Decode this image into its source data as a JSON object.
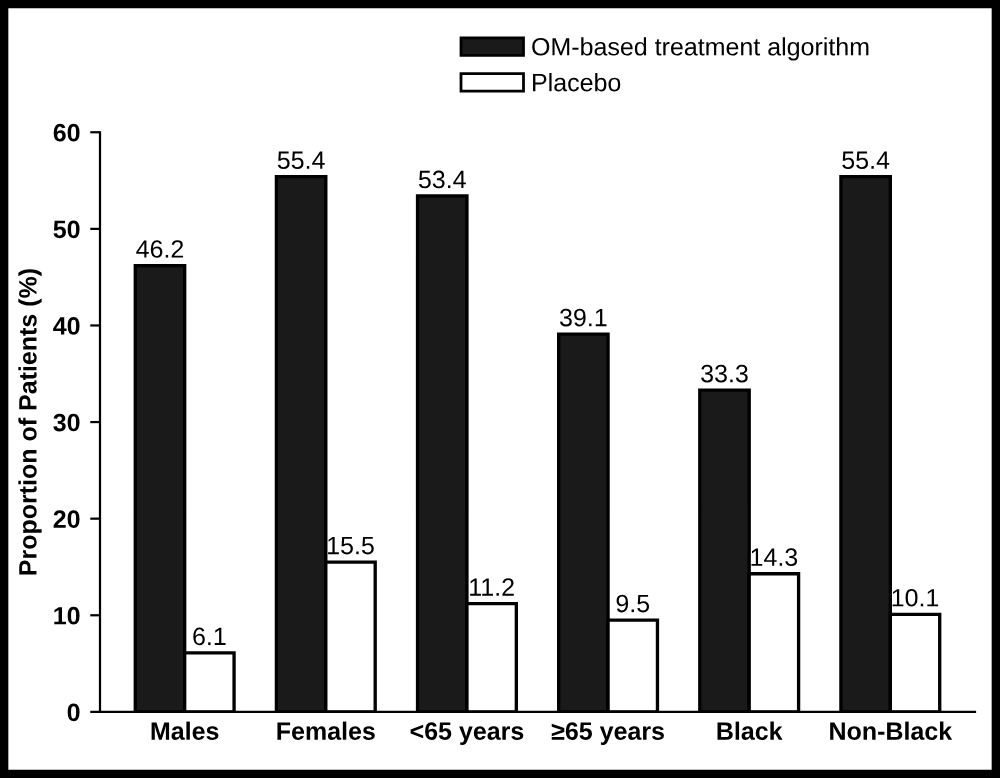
{
  "chart_data": {
    "type": "bar",
    "ylabel": "Proportion of Patients (%)",
    "categories": [
      "Males",
      "Females",
      "<65 years",
      "≥65 years",
      "Black",
      "Non-Black"
    ],
    "series": [
      {
        "name": "OM-based treatment algorithm",
        "color": "#1a1a1a",
        "values": [
          46.2,
          55.4,
          53.4,
          39.1,
          33.3,
          55.4
        ]
      },
      {
        "name": "Placebo",
        "color": "#ffffff",
        "values": [
          6.1,
          15.5,
          11.2,
          9.5,
          14.3,
          10.1
        ]
      }
    ],
    "ylim": [
      0,
      60
    ],
    "yticks": [
      0,
      10,
      20,
      30,
      40,
      50,
      60
    ],
    "grid": false,
    "legend": "top right",
    "data_labels": true
  }
}
